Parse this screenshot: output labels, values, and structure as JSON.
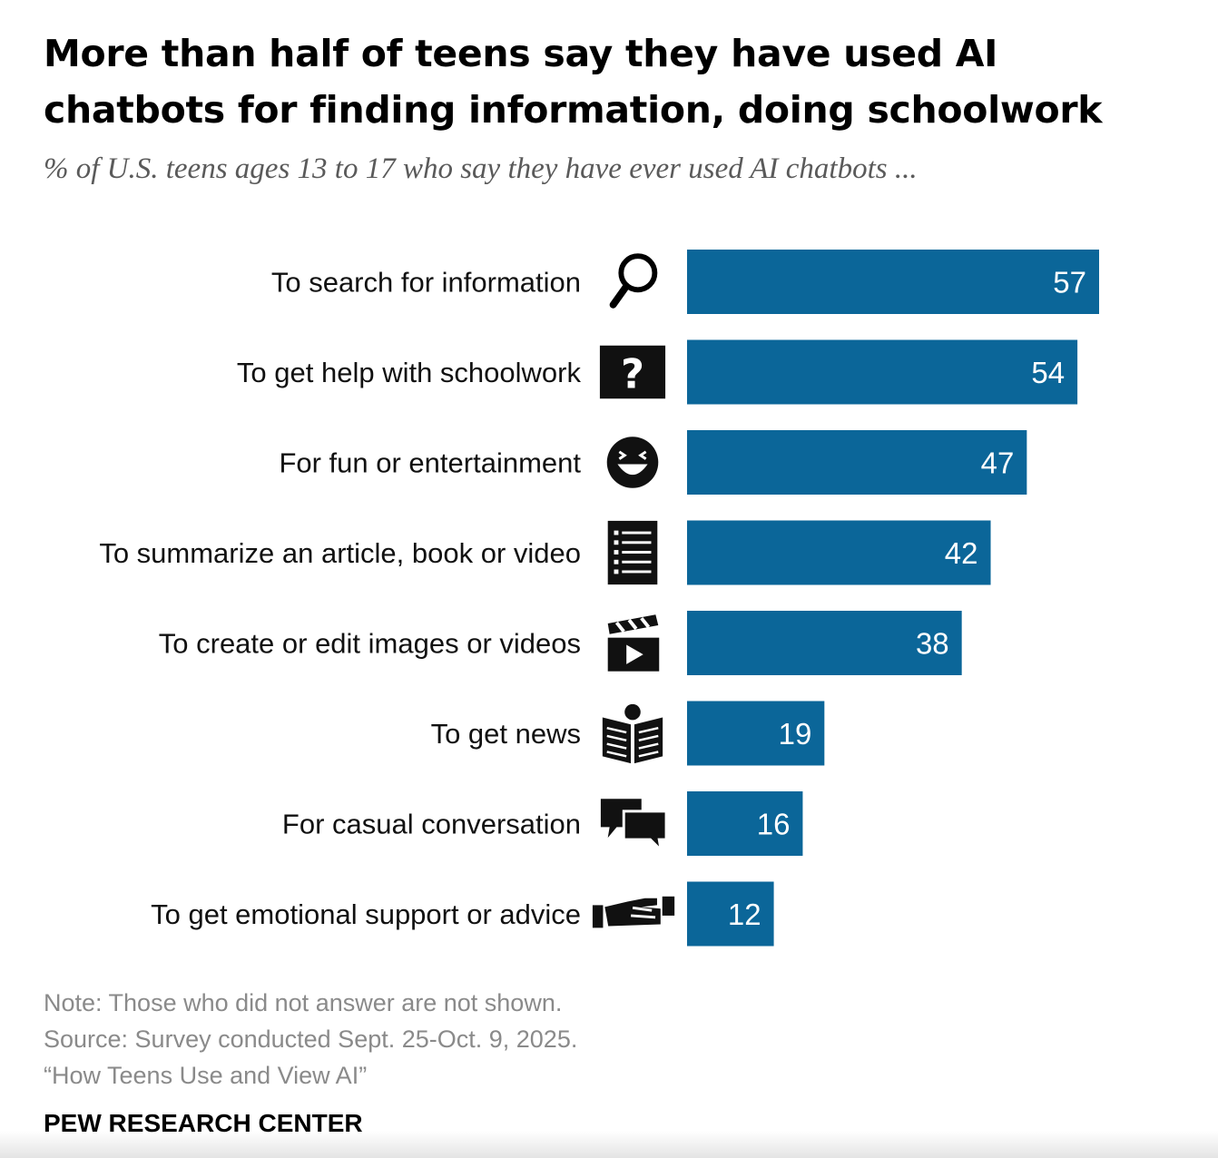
{
  "title": "More than half of teens say they have used AI chatbots for finding information, doing schoolwork",
  "subtitle": "% of U.S. teens ages 13 to 17 who say they have ever used AI chatbots ...",
  "colors": {
    "bar": "#0b6699",
    "label": "#111111",
    "note": "#8a8a8a"
  },
  "chart_data": {
    "type": "bar",
    "orientation": "horizontal",
    "title": "More than half of teens say they have used AI chatbots for finding information, doing schoolwork",
    "xlabel": "",
    "ylabel": "",
    "xlim": [
      0,
      57
    ],
    "categories": [
      "To search for information",
      "To get help with schoolwork",
      "For fun or entertainment",
      "To summarize an article, book or video",
      "To create or edit images or videos",
      "To get news",
      "For casual conversation",
      "To get emotional support or advice"
    ],
    "values": [
      57,
      54,
      47,
      42,
      38,
      19,
      16,
      12
    ],
    "icons": [
      "magnifier-icon",
      "question-mark-icon",
      "grinning-face-icon",
      "list-document-icon",
      "clapperboard-icon",
      "newspaper-reader-icon",
      "speech-bubbles-icon",
      "helping-hand-icon"
    ]
  },
  "notes": {
    "note": "Note: Those who did not answer are not shown.",
    "source": "Source: Survey conducted Sept. 25-Oct. 9, 2025.",
    "report": "“How Teens Use and View AI”"
  },
  "brand": "PEW RESEARCH CENTER"
}
